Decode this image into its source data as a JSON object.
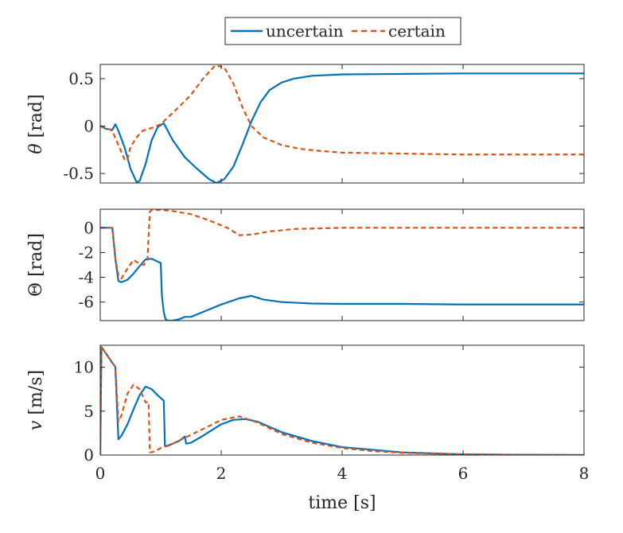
{
  "legend": {
    "placement": "top-center",
    "entries": [
      {
        "label": "uncertain",
        "color": "#0072BD",
        "style": "solid"
      },
      {
        "label": "certain",
        "color": "#D95319",
        "style": "dashed"
      }
    ]
  },
  "colors": {
    "uncertain": "#0072BD",
    "certain": "#D95319",
    "axis": "#262626"
  },
  "chart_data": [
    {
      "type": "line",
      "ylabel_symbol": "θ",
      "ylabel_unit": "[rad]",
      "xlim": [
        0,
        8
      ],
      "ylim": [
        -0.6,
        0.65
      ],
      "yticks": [
        0.5,
        0,
        -0.5
      ],
      "ytick_labels": [
        "0.5",
        "0",
        "-0.5"
      ],
      "show_xtick_labels": false,
      "grid": false,
      "series": [
        {
          "name": "uncertain",
          "x": [
            0,
            0.1,
            0.2,
            0.25,
            0.3,
            0.4,
            0.5,
            0.6,
            0.65,
            0.75,
            0.85,
            0.95,
            1.05,
            1.2,
            1.4,
            1.6,
            1.8,
            1.92,
            2.05,
            2.2,
            2.35,
            2.5,
            2.65,
            2.8,
            3.0,
            3.2,
            3.5,
            4.0,
            5.0,
            6.0,
            8.0
          ],
          "y": [
            0,
            -0.03,
            -0.04,
            0.02,
            -0.05,
            -0.22,
            -0.45,
            -0.59,
            -0.58,
            -0.4,
            -0.15,
            -0.01,
            0.03,
            -0.15,
            -0.33,
            -0.45,
            -0.56,
            -0.6,
            -0.56,
            -0.43,
            -0.2,
            0.05,
            0.25,
            0.38,
            0.46,
            0.5,
            0.53,
            0.545,
            0.55,
            0.555,
            0.555
          ]
        },
        {
          "name": "certain",
          "x": [
            0,
            0.1,
            0.2,
            0.3,
            0.4,
            0.45,
            0.5,
            0.6,
            0.7,
            0.85,
            1.0,
            1.1,
            1.3,
            1.5,
            1.7,
            1.9,
            2.05,
            2.2,
            2.35,
            2.5,
            2.7,
            3.0,
            3.3,
            3.6,
            4.0,
            5.0,
            6.0,
            8.0
          ],
          "y": [
            0,
            -0.02,
            -0.05,
            -0.2,
            -0.35,
            -0.36,
            -0.22,
            -0.12,
            -0.05,
            -0.02,
            0.02,
            0.08,
            0.2,
            0.33,
            0.5,
            0.64,
            0.62,
            0.45,
            0.2,
            0,
            -0.12,
            -0.2,
            -0.24,
            -0.26,
            -0.28,
            -0.29,
            -0.3,
            -0.3
          ]
        }
      ]
    },
    {
      "type": "line",
      "ylabel_symbol": "Θ",
      "ylabel_unit": "[rad]",
      "xlim": [
        0,
        8
      ],
      "ylim": [
        -7.5,
        1.5
      ],
      "yticks": [
        0,
        -2,
        -4,
        -6
      ],
      "ytick_labels": [
        "0",
        "-2",
        "-4",
        "-6"
      ],
      "show_xtick_labels": false,
      "grid": false,
      "series": [
        {
          "name": "uncertain",
          "x": [
            0,
            0.2,
            0.25,
            0.3,
            0.35,
            0.45,
            0.55,
            0.65,
            0.75,
            0.85,
            1.0,
            1.02,
            1.05,
            1.08,
            1.12,
            1.2,
            1.3,
            1.4,
            1.5,
            1.7,
            2.0,
            2.3,
            2.5,
            2.7,
            3.0,
            3.5,
            4.0,
            5.0,
            6.0,
            8.0
          ],
          "y": [
            0,
            0,
            -2.5,
            -4.3,
            -4.4,
            -4.2,
            -3.7,
            -3.1,
            -2.55,
            -2.5,
            -2.85,
            -5.5,
            -6.8,
            -7.4,
            -7.5,
            -7.5,
            -7.4,
            -7.2,
            -7.2,
            -6.8,
            -6.2,
            -5.7,
            -5.5,
            -5.8,
            -6.0,
            -6.12,
            -6.15,
            -6.15,
            -6.2,
            -6.2
          ]
        },
        {
          "name": "certain",
          "x": [
            0,
            0.2,
            0.25,
            0.3,
            0.35,
            0.45,
            0.55,
            0.65,
            0.72,
            0.78,
            0.82,
            0.86,
            1.0,
            1.2,
            1.5,
            1.8,
            2.1,
            2.3,
            2.5,
            2.8,
            3.2,
            3.6,
            4.0,
            5.0,
            6.0,
            8.0
          ],
          "y": [
            0,
            0,
            -2.5,
            -3.8,
            -4.1,
            -3.3,
            -2.6,
            -2.9,
            -3.0,
            -2.6,
            1.3,
            1.45,
            1.45,
            1.35,
            1.1,
            0.6,
            0.0,
            -0.6,
            -0.55,
            -0.3,
            -0.1,
            -0.05,
            0,
            0,
            0,
            0
          ]
        }
      ]
    },
    {
      "type": "line",
      "ylabel_symbol": "v",
      "ylabel_unit": "[m/s]",
      "xlabel": "time [s]",
      "xlim": [
        0,
        8
      ],
      "ylim": [
        0,
        12.5
      ],
      "xticks": [
        0,
        2,
        4,
        6,
        8
      ],
      "xtick_labels": [
        "0",
        "2",
        "4",
        "6",
        "8"
      ],
      "yticks": [
        0,
        5,
        10
      ],
      "ytick_labels": [
        "0",
        "5",
        "10"
      ],
      "show_xtick_labels": true,
      "grid": false,
      "series": [
        {
          "name": "uncertain",
          "x": [
            0,
            0.02,
            0.05,
            0.25,
            0.28,
            0.3,
            0.35,
            0.45,
            0.55,
            0.65,
            0.75,
            0.85,
            0.95,
            1.05,
            1.07,
            1.1,
            1.2,
            1.3,
            1.4,
            1.42,
            1.5,
            1.7,
            2.0,
            2.2,
            2.4,
            2.6,
            3.0,
            3.5,
            4.0,
            5.0,
            6.0,
            7.0,
            8.0
          ],
          "y": [
            0,
            12.3,
            12.0,
            10.0,
            5.0,
            1.8,
            2.2,
            3.5,
            5.2,
            6.8,
            7.8,
            7.5,
            6.8,
            6.2,
            1.0,
            1.0,
            1.3,
            1.6,
            2.1,
            1.3,
            1.4,
            2.2,
            3.5,
            4.0,
            4.1,
            3.8,
            2.6,
            1.6,
            0.9,
            0.3,
            0.08,
            0.02,
            0.0
          ]
        },
        {
          "name": "certain",
          "x": [
            0,
            0.02,
            0.05,
            0.25,
            0.3,
            0.35,
            0.45,
            0.55,
            0.65,
            0.75,
            0.8,
            0.82,
            0.9,
            1.0,
            1.2,
            1.5,
            1.8,
            2.0,
            2.3,
            2.6,
            3.0,
            3.5,
            4.0,
            4.5,
            5.0,
            6.0,
            7.0,
            8.0
          ],
          "y": [
            0,
            12.3,
            12.0,
            10.0,
            3.8,
            4.5,
            7.0,
            8.0,
            7.5,
            6.0,
            6.0,
            0.3,
            0.4,
            0.8,
            1.3,
            2.3,
            3.3,
            4.0,
            4.4,
            3.7,
            2.4,
            1.4,
            0.8,
            0.45,
            0.25,
            0.08,
            0.02,
            0.0
          ]
        }
      ]
    }
  ]
}
